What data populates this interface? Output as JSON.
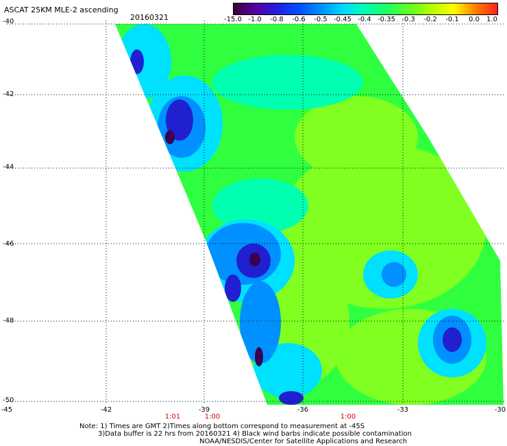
{
  "header": {
    "title": "ASCAT 25KM MLE-2 ascending",
    "date": "20160321"
  },
  "colorbar": {
    "ticks": [
      "-15.0",
      "-1.0",
      "-0.8",
      "-0.6",
      "-0.5",
      "-0.45",
      "-0.4",
      "-0.35",
      "-0.3",
      "-0.2",
      "-0.1",
      "0.0",
      "1.0"
    ],
    "colors": [
      "#3a003a",
      "#5a00a0",
      "#2020e0",
      "#0050ff",
      "#0090ff",
      "#00d8ff",
      "#00ffb0",
      "#20ff60",
      "#60ff20",
      "#b0ff00",
      "#ffff00",
      "#ff8000",
      "#ff2020"
    ]
  },
  "map": {
    "lat_labels": [
      "-40",
      "-42",
      "-44",
      "-46",
      "-48",
      "-50"
    ],
    "lon_labels": [
      "-45",
      "-42",
      "-39",
      "-36",
      "-33",
      "-30"
    ],
    "time_labels": [
      "1:01",
      "1:00",
      "1:00"
    ],
    "grid": true,
    "colors": {
      "dark": "#3a0050",
      "blue": "#2020d0",
      "mid": "#0090ff",
      "cyan": "#00e0ff",
      "teal": "#00ffb0",
      "green": "#30ff40",
      "lime": "#80ff20"
    }
  },
  "notes": [
    "Note: 1) Times are GMT 2)Times along bottom correspond to measurement at -45S",
    "3)Data buffer is 22 hrs from 20160321 4) Black wind barbs indicate possible contamination",
    "NOAA/NESDIS/Center for Satellite Applications and Research"
  ]
}
